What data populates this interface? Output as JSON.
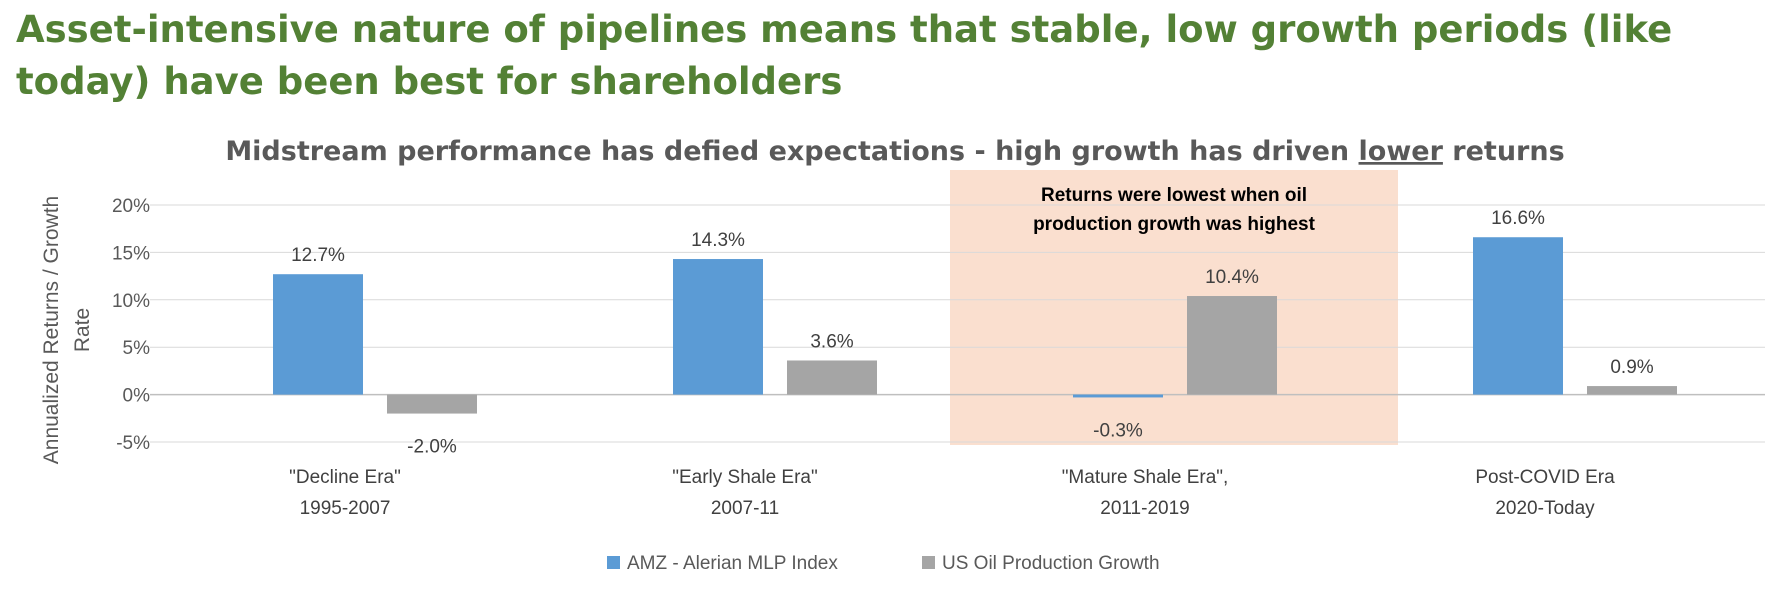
{
  "page": {
    "title": "Asset-intensive nature of pipelines means that stable, low growth periods (like today) have been best for shareholders"
  },
  "chart_data": {
    "type": "bar",
    "title_parts": [
      "Midstream performance has defied expectations - high growth has driven ",
      "lower",
      " returns"
    ],
    "ylabel": "Annualized Returns / Growth Rate",
    "ylabel_lines": [
      "Annualized Returns / Growth",
      "Rate"
    ],
    "ylim": [
      -5,
      20
    ],
    "yticks": [
      -5,
      0,
      5,
      10,
      15,
      20
    ],
    "ytick_labels": [
      "-5%",
      "0%",
      "5%",
      "10%",
      "15%",
      "20%"
    ],
    "grid": true,
    "legend_position": "bottom",
    "categories": [
      [
        "\"Decline Era\"",
        "1995-2007"
      ],
      [
        "\"Early  Shale Era\"",
        "2007-11"
      ],
      [
        "\"Mature Shale Era\",",
        "2011-2019"
      ],
      [
        "Post-COVID Era",
        "2020-Today"
      ]
    ],
    "series": [
      {
        "name": "AMZ - Alerian MLP Index",
        "color": "#5B9BD5",
        "values": [
          12.7,
          14.3,
          -0.3,
          16.6
        ],
        "labels": [
          "12.7%",
          "14.3%",
          "-0.3%",
          "16.6%"
        ]
      },
      {
        "name": "US Oil Production Growth",
        "color": "#A5A5A5",
        "values": [
          -2.0,
          3.6,
          10.4,
          0.9
        ],
        "labels": [
          "-2.0%",
          "3.6%",
          "10.4%",
          "0.9%"
        ]
      }
    ],
    "highlight": {
      "category_index": 2,
      "color": "#FADFCF",
      "text": [
        "Returns were lowest when oil",
        "production growth was highest"
      ]
    }
  }
}
